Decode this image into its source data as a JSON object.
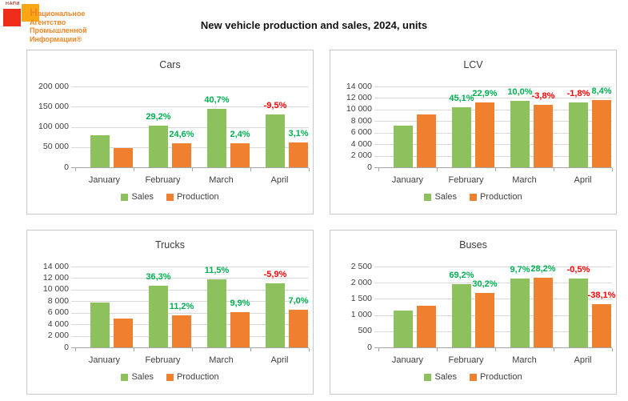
{
  "header": {
    "title": "New vehicle production and sales, 2024, units",
    "logo": {
      "acronym": "НАПИ",
      "text_lines": [
        "Национальное",
        "Агентство",
        "Промышленной",
        "Информации®"
      ],
      "acronym_color": "#9C3A30",
      "red_square_color": "#EE2C1A",
      "orange_square_color": "#FBA713",
      "text_color": "#EF8727"
    }
  },
  "colors": {
    "sales": "#8CC15E",
    "production": "#EE8030",
    "positive_pct": "#00B050",
    "negative_pct": "#FF0000"
  },
  "chart_data": [
    {
      "type": "bar",
      "title": "Cars",
      "categories": [
        "January",
        "February",
        "March",
        "April"
      ],
      "ylim": [
        0,
        200000
      ],
      "ystep": 50000,
      "yticks": [
        "0",
        "50 000",
        "100 000",
        "150 000",
        "200 000"
      ],
      "legend_position": "bottom",
      "grid": true,
      "series": [
        {
          "name": "Sales",
          "values": [
            80000,
            103400,
            145400,
            131600
          ],
          "pct_labels": [
            "",
            "29,2%",
            "40,7%",
            "-9,5%"
          ]
        },
        {
          "name": "Production",
          "values": [
            47000,
            58600,
            60000,
            61800
          ],
          "pct_labels": [
            "",
            "24,6%",
            "2,4%",
            "3,1%"
          ]
        }
      ]
    },
    {
      "type": "bar",
      "title": "LCV",
      "categories": [
        "January",
        "February",
        "March",
        "April"
      ],
      "ylim": [
        0,
        14000
      ],
      "ystep": 2000,
      "yticks": [
        "0",
        "2 000",
        "4 000",
        "6 000",
        "8 000",
        "10 000",
        "12 000",
        "14 000"
      ],
      "legend_position": "bottom",
      "grid": true,
      "series": [
        {
          "name": "Sales",
          "values": [
            7200,
            10450,
            11490,
            11280
          ],
          "pct_labels": [
            "",
            "45,1%",
            "10,0%",
            "-1,8%"
          ]
        },
        {
          "name": "Production",
          "values": [
            9100,
            11180,
            10760,
            11660
          ],
          "pct_labels": [
            "",
            "22,9%",
            "-3,8%",
            "8,4%"
          ]
        }
      ]
    },
    {
      "type": "bar",
      "title": "Trucks",
      "categories": [
        "January",
        "February",
        "March",
        "April"
      ],
      "ylim": [
        0,
        14000
      ],
      "ystep": 2000,
      "yticks": [
        "0",
        "2 000",
        "4 000",
        "6 000",
        "8 000",
        "10 000",
        "12 000",
        "14 000"
      ],
      "legend_position": "bottom",
      "grid": true,
      "series": [
        {
          "name": "Sales",
          "values": [
            7800,
            10630,
            11850,
            11150
          ],
          "pct_labels": [
            "",
            "36,3%",
            "11,5%",
            "-5,9%"
          ]
        },
        {
          "name": "Production",
          "values": [
            5000,
            5560,
            6110,
            6540
          ],
          "pct_labels": [
            "",
            "11,2%",
            "9,9%",
            "7,0%"
          ]
        }
      ]
    },
    {
      "type": "bar",
      "title": "Buses",
      "categories": [
        "January",
        "February",
        "March",
        "April"
      ],
      "ylim": [
        0,
        2500
      ],
      "ystep": 500,
      "yticks": [
        "0",
        "500",
        "1 000",
        "1 500",
        "2 000",
        "2 500"
      ],
      "legend_position": "bottom",
      "grid": true,
      "series": [
        {
          "name": "Sales",
          "values": [
            1150,
            1946,
            2135,
            2124
          ],
          "pct_labels": [
            "",
            "69,2%",
            "9,7%",
            "-0,5%"
          ]
        },
        {
          "name": "Production",
          "values": [
            1290,
            1680,
            2154,
            1333
          ],
          "pct_labels": [
            "",
            "30,2%",
            "28,2%",
            "-38,1%"
          ]
        }
      ]
    }
  ]
}
